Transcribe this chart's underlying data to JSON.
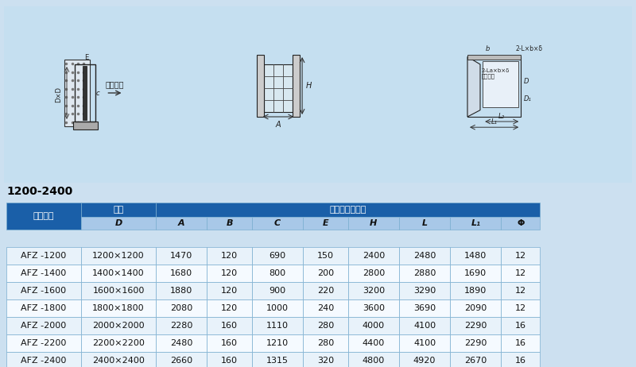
{
  "title": "1200-2400",
  "bg_color": "#cce0f0",
  "table_bg": "#ddeef8",
  "header_blue_dark": "#1a5fa8",
  "header_blue_light": "#a8c8e8",
  "row_alt": "#e8f2fa",
  "row_white": "#f5faff",
  "border_color": "#7aaed0",
  "col_headers_row1": [
    "口径",
    "外形及安装尺寸"
  ],
  "col_headers_row2": [
    "型号规格",
    "D",
    "A",
    "B",
    "C",
    "E",
    "H",
    "L",
    "L₁",
    "Φ"
  ],
  "col_spans_row1": [
    1,
    8
  ],
  "data": [
    [
      "AFZ -1200",
      "1200×1200",
      "1470",
      "120",
      "690",
      "150",
      "2400",
      "2480",
      "1480",
      "12"
    ],
    [
      "AFZ -1400",
      "1400×1400",
      "1680",
      "120",
      "800",
      "200",
      "2800",
      "2880",
      "1690",
      "12"
    ],
    [
      "AFZ -1600",
      "1600×1600",
      "1880",
      "120",
      "900",
      "220",
      "3200",
      "3290",
      "1890",
      "12"
    ],
    [
      "AFZ -1800",
      "1800×1800",
      "2080",
      "120",
      "1000",
      "240",
      "3600",
      "3690",
      "2090",
      "12"
    ],
    [
      "AFZ -2000",
      "2000×2000",
      "2280",
      "160",
      "1110",
      "280",
      "4000",
      "4100",
      "2290",
      "16"
    ],
    [
      "AFZ -2200",
      "2200×2200",
      "2480",
      "160",
      "1210",
      "280",
      "4400",
      "4100",
      "2290",
      "16"
    ],
    [
      "AFZ -2400",
      "2400×2400",
      "2660",
      "160",
      "1315",
      "320",
      "4800",
      "4920",
      "2670",
      "16"
    ]
  ]
}
